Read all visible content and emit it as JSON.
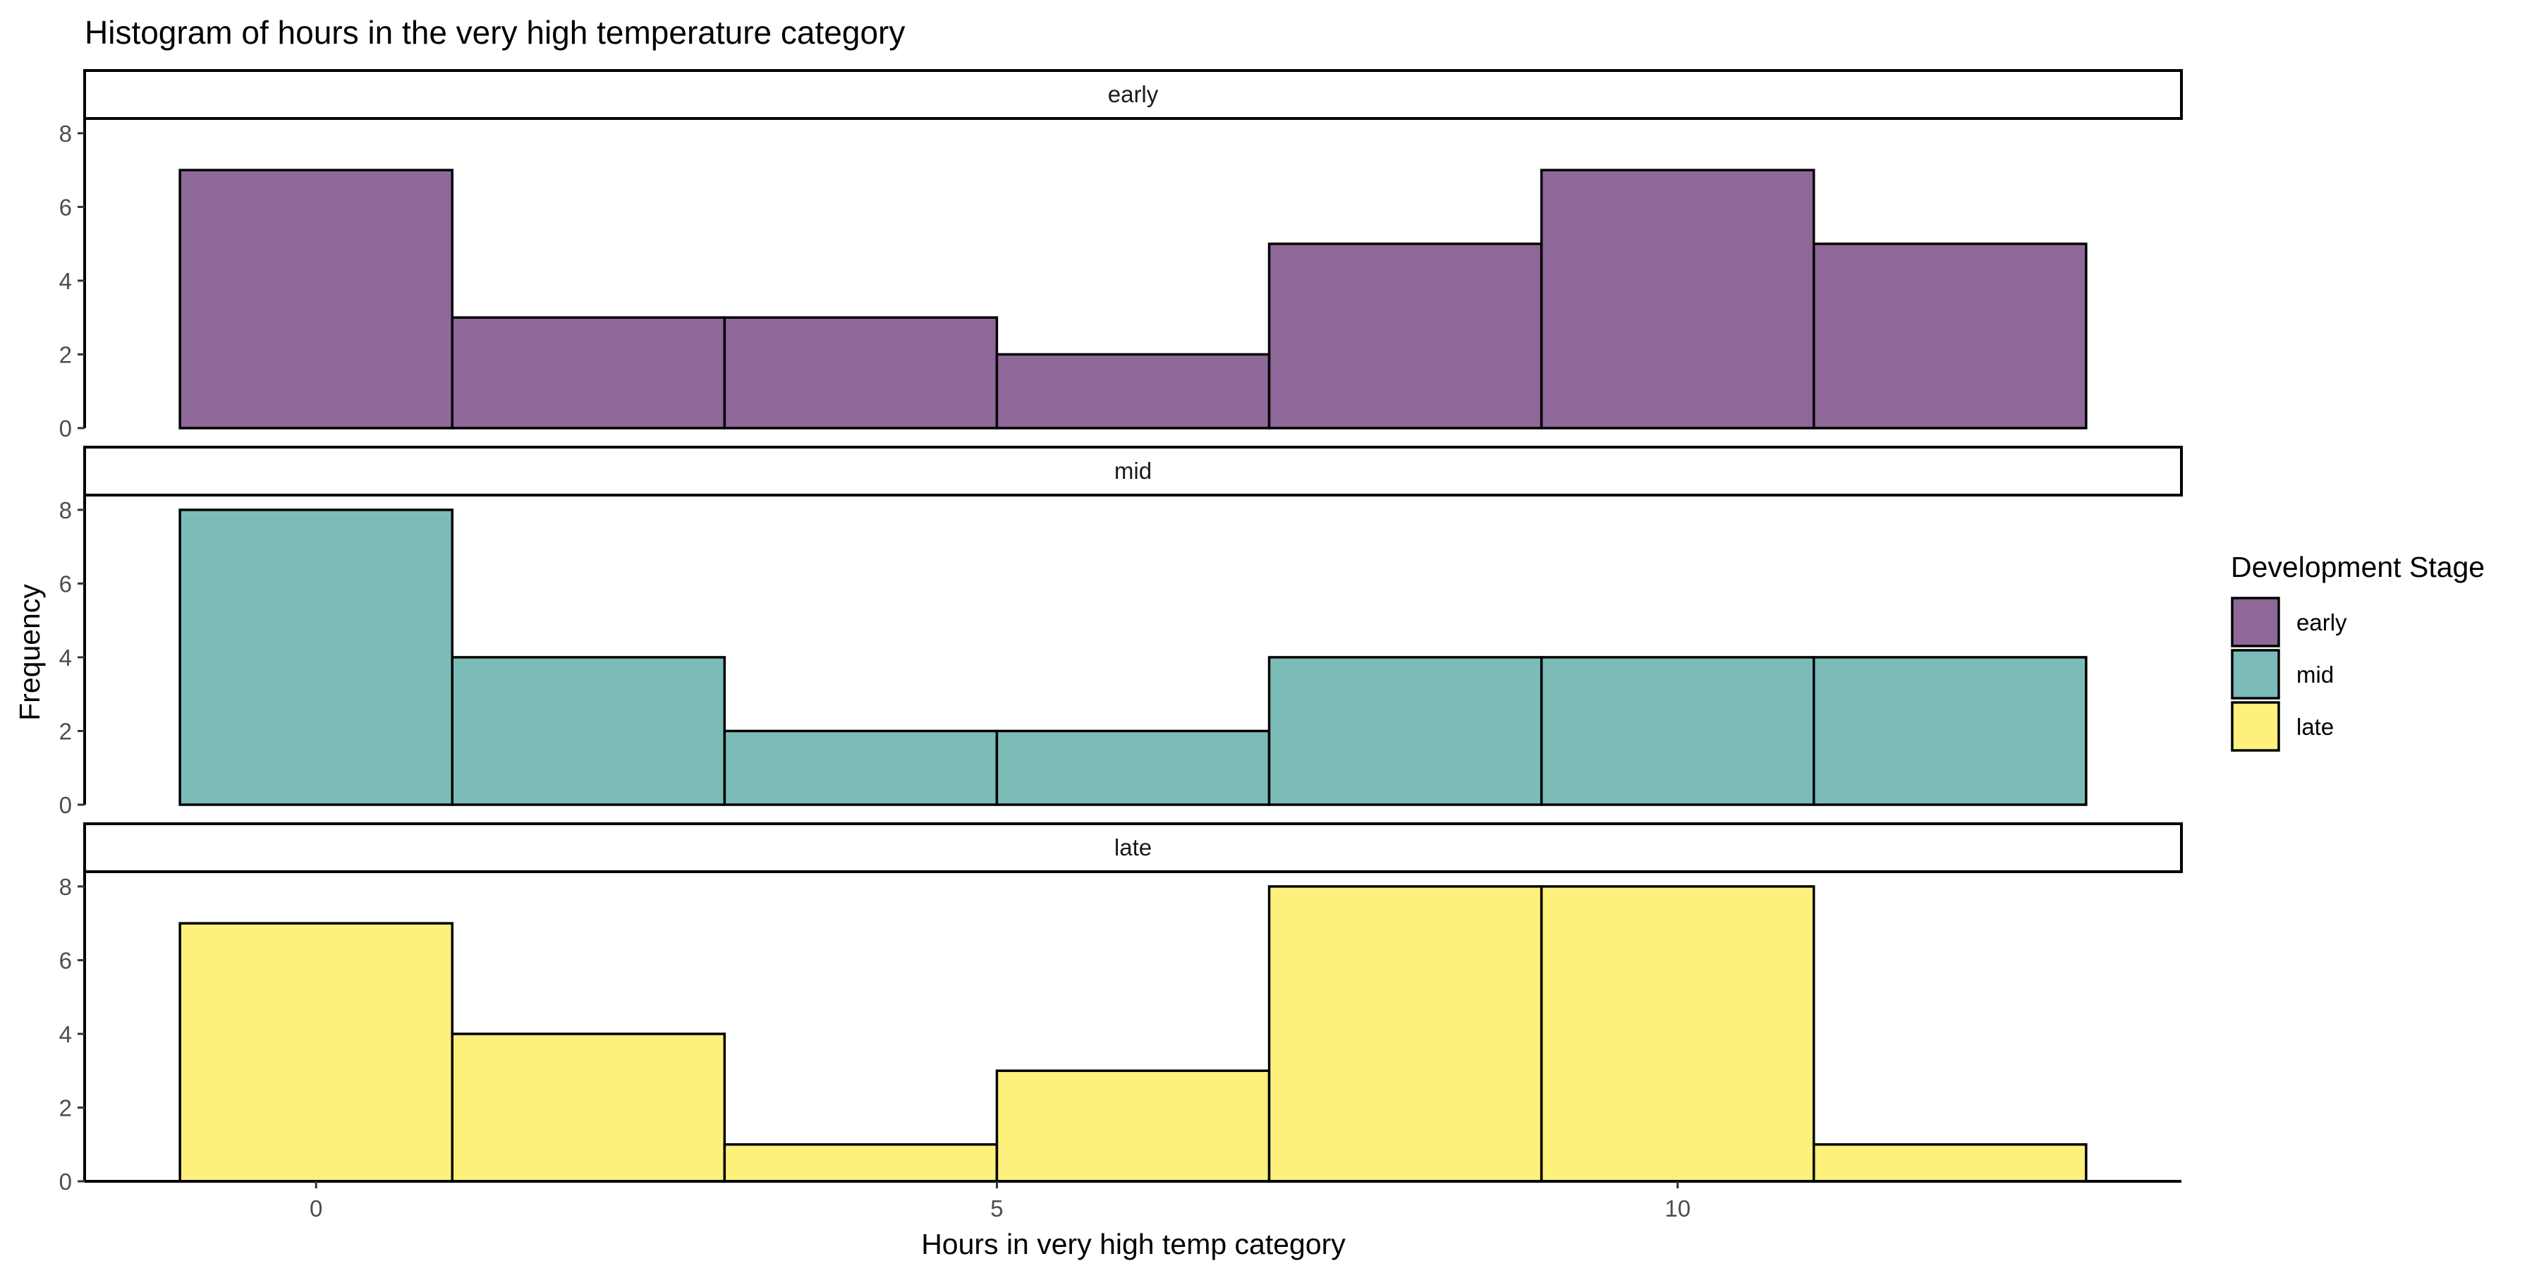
{
  "chart_data": {
    "type": "bar",
    "title": "Histogram of hours in the very high temperature category",
    "xlabel": "Hours in very high temp category",
    "ylabel": "Frequency",
    "bins": [
      [
        -1,
        1
      ],
      [
        1,
        3
      ],
      [
        3,
        5
      ],
      [
        5,
        7
      ],
      [
        7,
        9
      ],
      [
        9,
        11
      ],
      [
        11,
        13
      ]
    ],
    "xlim": [
      -1.7,
      13.7
    ],
    "ylim": [
      0,
      8.4
    ],
    "x_ticks": [
      0,
      5,
      10
    ],
    "y_ticks": [
      0,
      2,
      4,
      6,
      8
    ],
    "grid": false,
    "legend": {
      "title": "Development Stage",
      "position": "right"
    },
    "series": [
      {
        "name": "early",
        "color": "#8e6898",
        "values": [
          7,
          3,
          3,
          2,
          5,
          7,
          5
        ]
      },
      {
        "name": "mid",
        "color": "#7bbcb9",
        "values": [
          8,
          4,
          2,
          2,
          4,
          4,
          4
        ]
      },
      {
        "name": "late",
        "color": "#fdf07d",
        "values": [
          7,
          4,
          1,
          3,
          8,
          8,
          1
        ]
      }
    ]
  }
}
